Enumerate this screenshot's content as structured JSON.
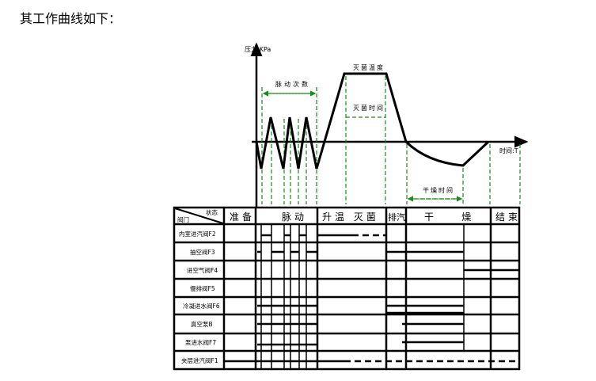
{
  "intro_text": "其工作曲线如下：",
  "diagram": {
    "y_axis_label": "压力:KPa",
    "x_axis_label": "时间:T",
    "pulse_count_label": "脉动次数",
    "sterilize_temp_label": "灭菌温度",
    "sterilize_time_label": "灭菌时间",
    "dry_time_label": "干燥时间",
    "line_color": "#000000",
    "guide_color": "#1a8a1a"
  },
  "table": {
    "corner_top": "状态",
    "corner_bottom": "阀门",
    "phases": [
      "准备",
      "脉动",
      "升温 灭菌",
      "排汽",
      "干    燥",
      "结束"
    ],
    "rows": [
      "内室进汽阀F2",
      "抽空阀F3",
      "进空气阀F4",
      "慢排阀F5",
      "冷凝进水阀F6",
      "真空泵B",
      "泵进水阀F7",
      "夹层进汽阀F1"
    ]
  }
}
